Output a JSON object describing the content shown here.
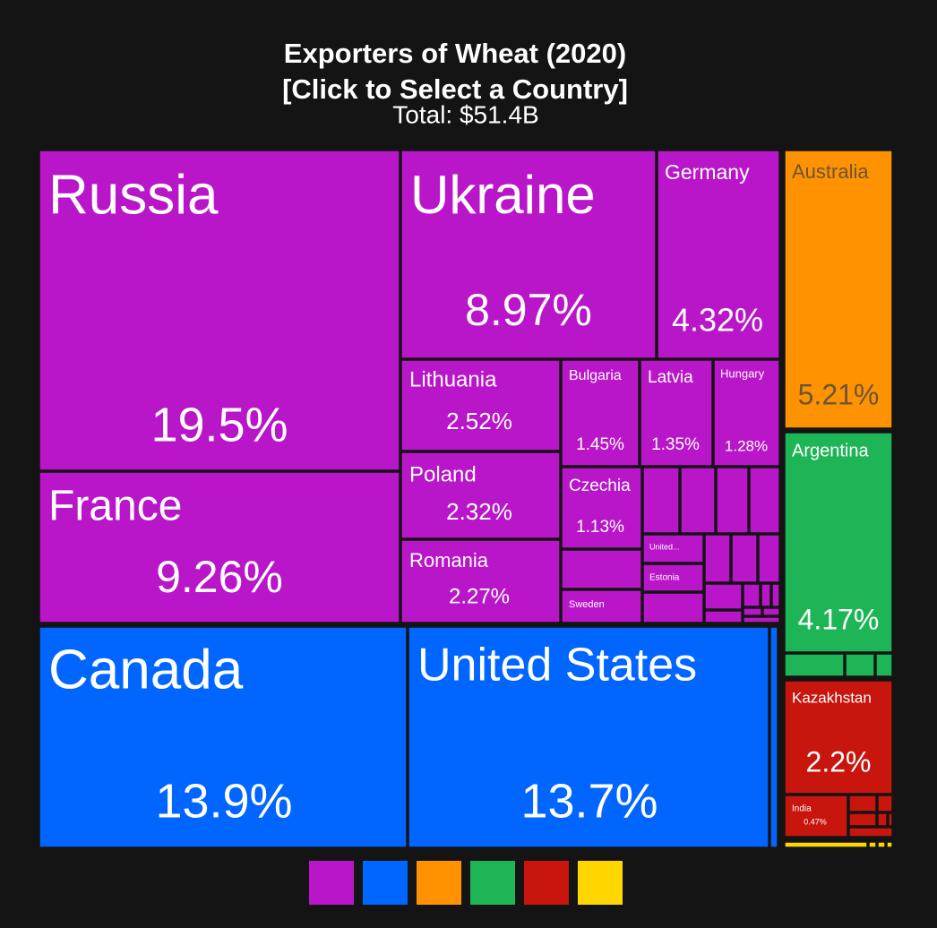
{
  "chart_data": {
    "type": "treemap",
    "title": "Exporters of Wheat (2020)",
    "subtitle": "[Click to Select a Country]",
    "total": "Total: $51.4B",
    "groups": [
      {
        "color": "#b916c9",
        "items": [
          {
            "name": "Russia",
            "value": 19.5,
            "value_label": "19.5%"
          },
          {
            "name": "France",
            "value": 9.26,
            "value_label": "9.26%"
          },
          {
            "name": "Ukraine",
            "value": 8.97,
            "value_label": "8.97%"
          },
          {
            "name": "Germany",
            "value": 4.32,
            "value_label": "4.32%"
          },
          {
            "name": "Lithuania",
            "value": 2.52,
            "value_label": "2.52%"
          },
          {
            "name": "Poland",
            "value": 2.32,
            "value_label": "2.32%"
          },
          {
            "name": "Romania",
            "value": 2.27,
            "value_label": "2.27%"
          },
          {
            "name": "Bulgaria",
            "value": 1.45,
            "value_label": "1.45%"
          },
          {
            "name": "Latvia",
            "value": 1.35,
            "value_label": "1.35%"
          },
          {
            "name": "Hungary",
            "value": 1.28,
            "value_label": "1.28%"
          },
          {
            "name": "Czechia",
            "value": 1.13,
            "value_label": "1.13%"
          },
          {
            "name": "United..."
          },
          {
            "name": "Estonia"
          },
          {
            "name": "Sweden"
          }
        ]
      },
      {
        "color": "#0066ff",
        "items": [
          {
            "name": "Canada",
            "value": 13.9,
            "value_label": "13.9%"
          },
          {
            "name": "United States",
            "value": 13.7,
            "value_label": "13.7%"
          }
        ]
      },
      {
        "color": "#ff9200",
        "items": [
          {
            "name": "Australia",
            "value": 5.21,
            "value_label": "5.21%"
          }
        ]
      },
      {
        "color": "#1db556",
        "items": [
          {
            "name": "Argentina",
            "value": 4.17,
            "value_label": "4.17%"
          }
        ]
      },
      {
        "color": "#c8150e",
        "items": [
          {
            "name": "Kazakhstan",
            "value": 2.2,
            "value_label": "2.2%"
          },
          {
            "name": "India",
            "value": 0.47,
            "value_label": "0.47%"
          }
        ]
      },
      {
        "color": "#ffd600",
        "items": []
      }
    ]
  }
}
